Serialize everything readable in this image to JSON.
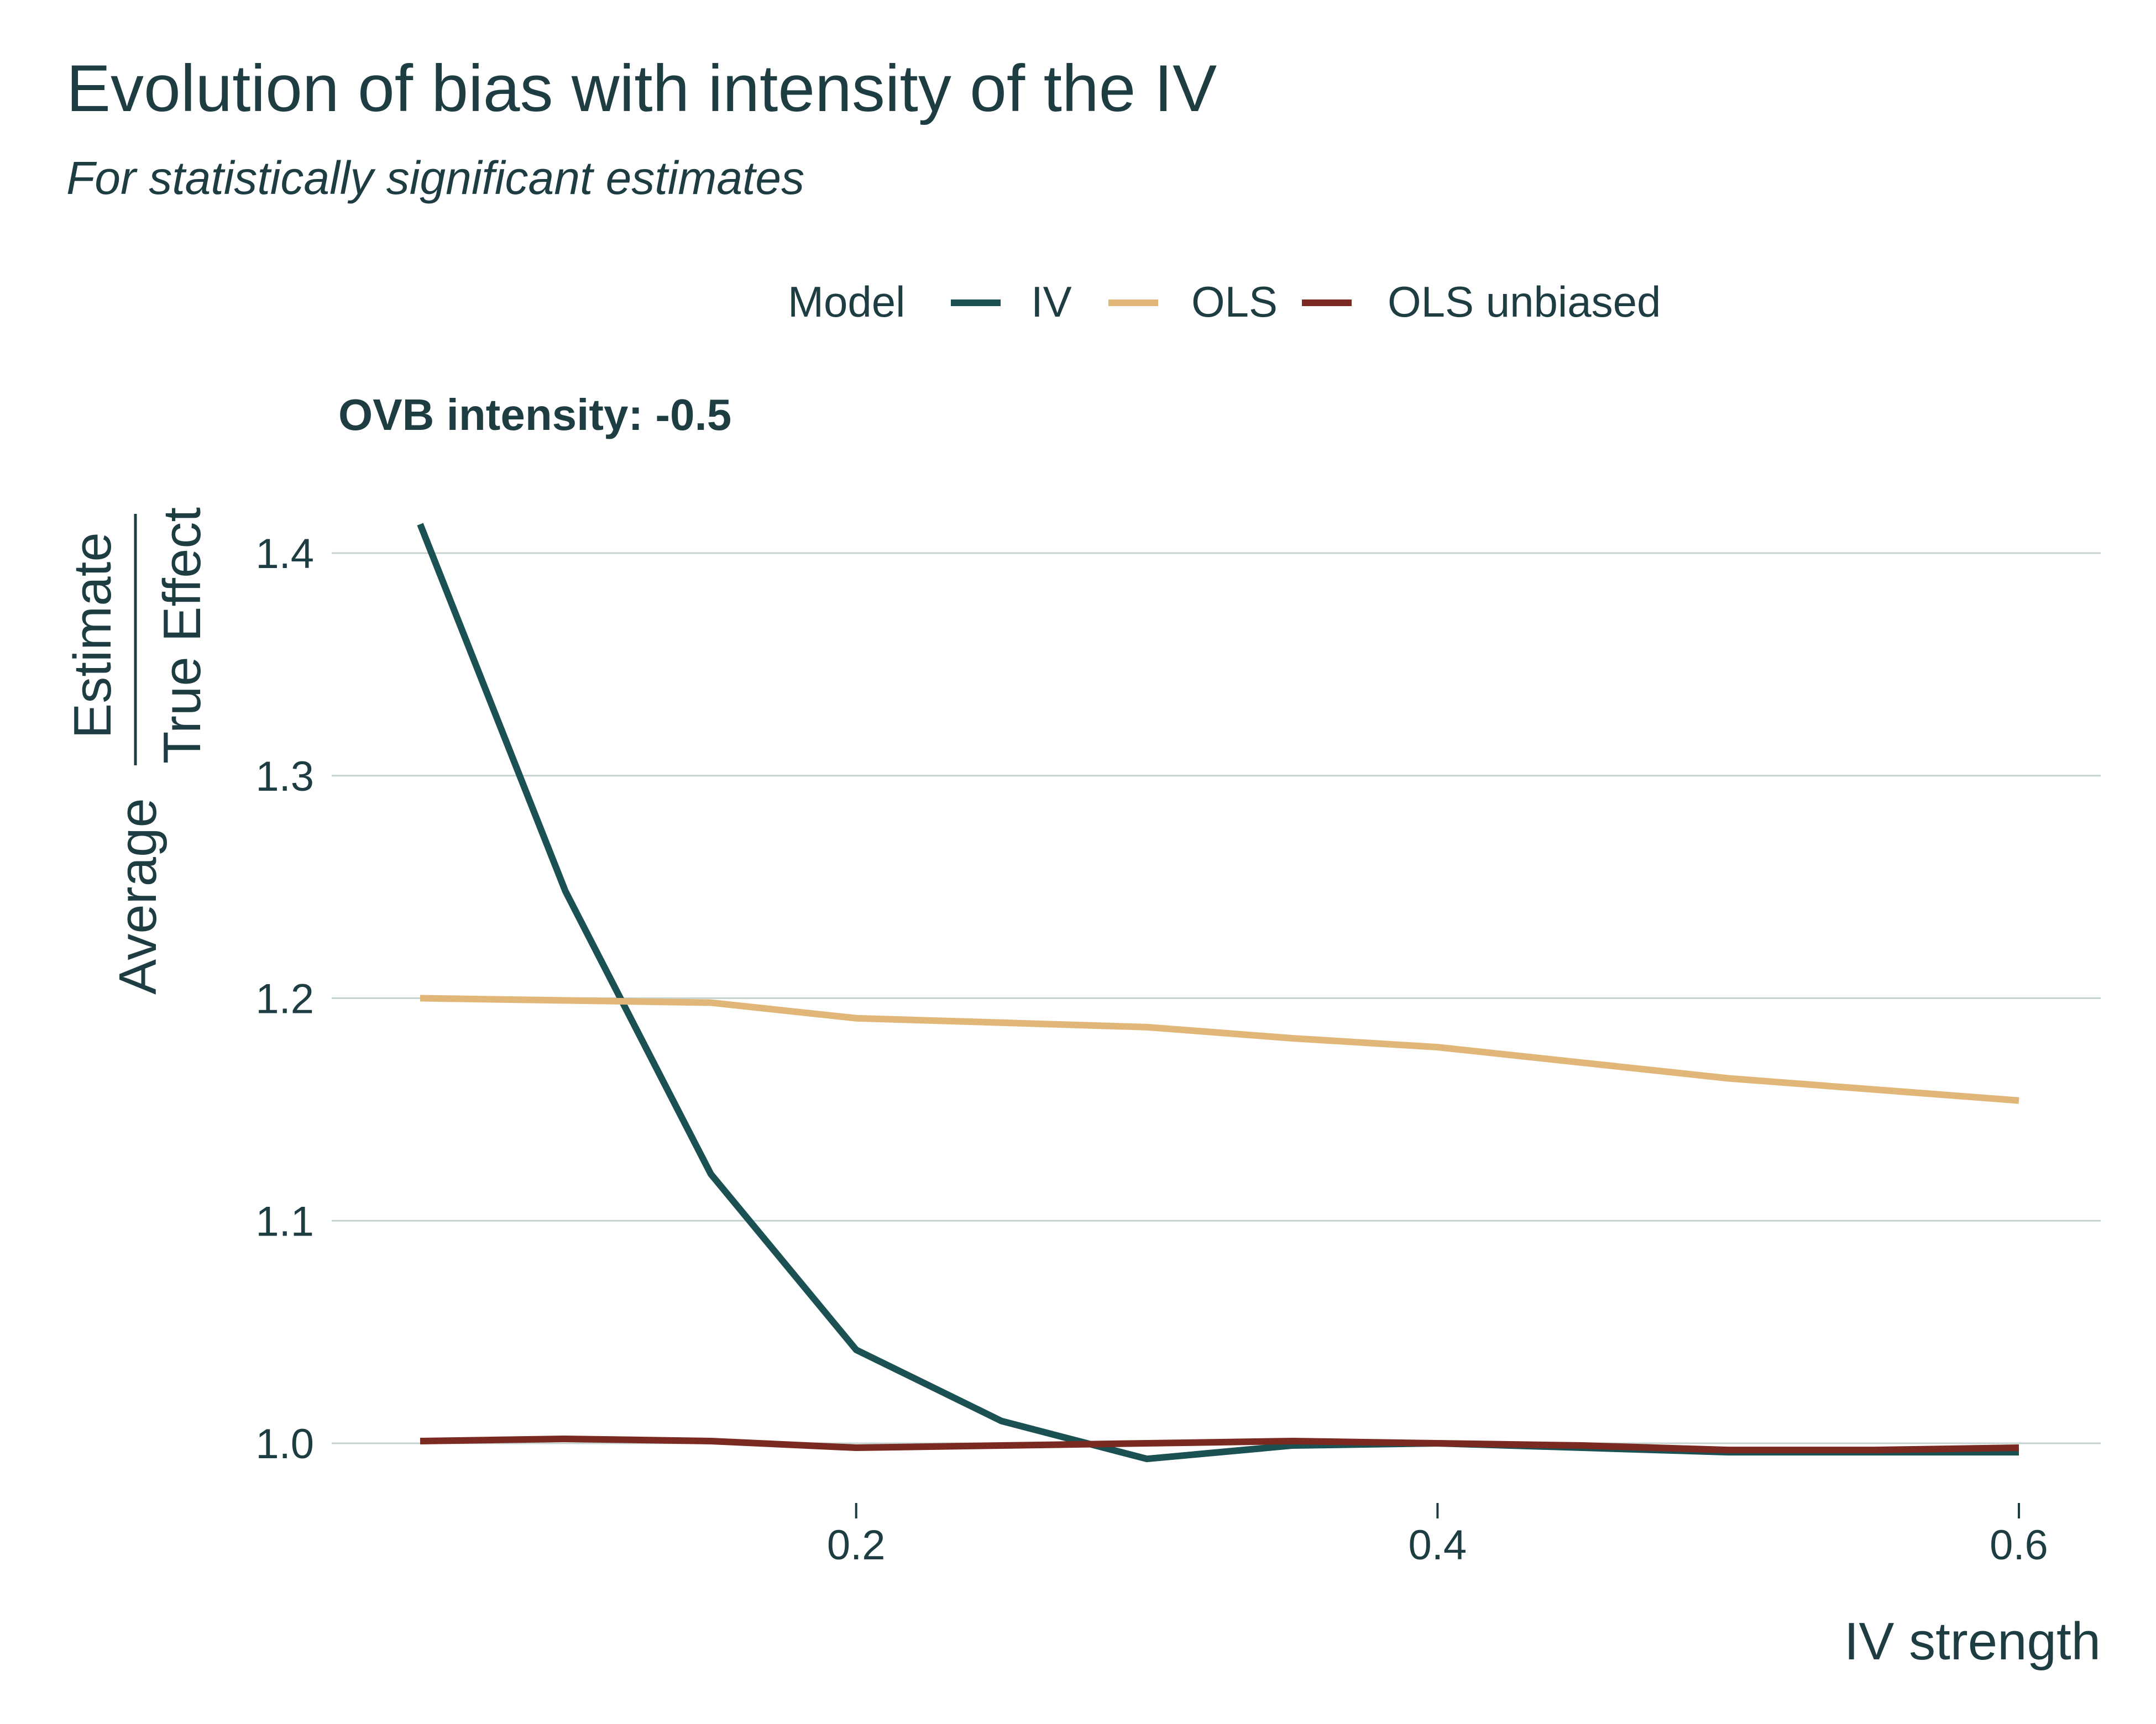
{
  "title": "Evolution of bias with intensity of the IV",
  "subtitle": "For statistically significant estimates",
  "legend": {
    "title": "Model",
    "items": [
      {
        "label": "IV",
        "color": "#1c5153"
      },
      {
        "label": "OLS",
        "color": "#e0b778"
      },
      {
        "label": "OLS unbiased",
        "color": "#7a2a20"
      }
    ]
  },
  "facet_label": "OVB intensity: -0.5",
  "y_axis": {
    "prefix": "Average",
    "numerator": "Estimate",
    "denominator": "True Effect"
  },
  "x_axis_label": "IV strength",
  "chart_data": {
    "type": "line",
    "title": "Evolution of bias with intensity of the IV",
    "subtitle": "For statistically significant estimates",
    "xlabel": "IV strength",
    "ylabel": "Average Estimate / True Effect",
    "xlim": [
      0.05,
      0.6
    ],
    "ylim": [
      0.96,
      1.43
    ],
    "x_ticks": [
      0.2,
      0.4,
      0.6
    ],
    "y_ticks": [
      1.0,
      1.1,
      1.2,
      1.3,
      1.4
    ],
    "x_tick_labels": [
      "0.2",
      "0.4",
      "0.6"
    ],
    "y_tick_labels": [
      "1.0",
      "1.1",
      "1.2",
      "1.3",
      "1.4"
    ],
    "grid": "horizontal",
    "legend_position": "top",
    "x": [
      0.05,
      0.1,
      0.15,
      0.2,
      0.25,
      0.3,
      0.35,
      0.4,
      0.45,
      0.5,
      0.55,
      0.6
    ],
    "series": [
      {
        "name": "IV",
        "color": "#1c5153",
        "values": [
          1.413,
          1.248,
          1.121,
          1.042,
          1.01,
          0.993,
          0.999,
          1.0,
          0.998,
          0.996,
          0.996,
          0.996
        ]
      },
      {
        "name": "OLS",
        "color": "#e0b778",
        "values": [
          1.2,
          1.199,
          1.198,
          1.191,
          1.189,
          1.187,
          1.182,
          1.178,
          1.171,
          1.164,
          1.159,
          1.154
        ]
      },
      {
        "name": "OLS unbiased",
        "color": "#7a2a20",
        "values": [
          1.001,
          1.002,
          1.001,
          0.998,
          0.999,
          1.0,
          1.001,
          1.0,
          0.999,
          0.997,
          0.997,
          0.998
        ]
      }
    ]
  }
}
